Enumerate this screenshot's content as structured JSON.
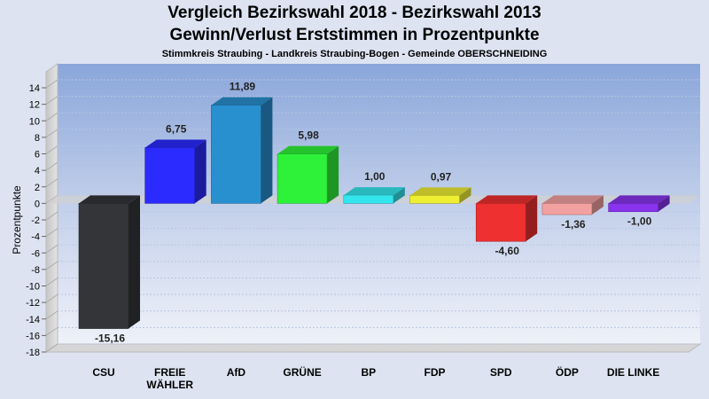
{
  "chart_data": {
    "type": "bar",
    "title": "Vergleich Bezirkswahl 2018 - Bezirkswahl 2013",
    "title2": "Gewinn/Verlust Erststimmen in Prozentpunkte",
    "subtitle": "Stimmkreis Straubing - Landkreis Straubing-Bogen - Gemeinde OBERSCHNEIDING",
    "ylabel": "Prozentpunkte",
    "ylim": [
      -18,
      14
    ],
    "yticks": [
      14,
      12,
      10,
      8,
      6,
      4,
      2,
      0,
      -2,
      -4,
      -6,
      -8,
      -10,
      -12,
      -14,
      -16,
      -18
    ],
    "grid": true,
    "categories": [
      [
        "CSU"
      ],
      [
        "FREIE",
        "WÄHLER"
      ],
      [
        "AfD"
      ],
      [
        "GRÜNE"
      ],
      [
        "BP"
      ],
      [
        "FDP"
      ],
      [
        "SPD"
      ],
      [
        "ÖDP"
      ],
      [
        "DIE LINKE"
      ]
    ],
    "values": [
      -15.16,
      6.75,
      11.89,
      5.98,
      1.0,
      0.97,
      -4.6,
      -1.36,
      -1.0
    ],
    "value_labels": [
      "-15,16",
      "6,75",
      "11,89",
      "5,98",
      "1,00",
      "0,97",
      "-4,60",
      "-1,36",
      "-1,00"
    ],
    "colors": [
      "#333538",
      "#2b2bff",
      "#2990d0",
      "#2ef23a",
      "#33e6ee",
      "#eeee33",
      "#ee3030",
      "#f3a0a0",
      "#8833ee"
    ]
  }
}
